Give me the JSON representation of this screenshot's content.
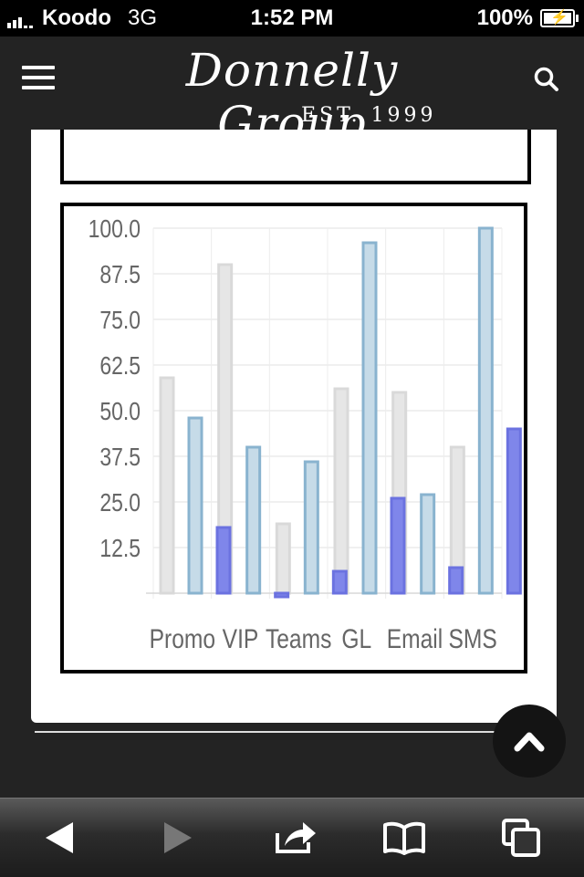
{
  "status_bar": {
    "carrier": "Koodo",
    "network": "3G",
    "time": "1:52 PM",
    "battery": "100%"
  },
  "header": {
    "logo_script": "Donnelly Group",
    "logo_est": "EST. 1999",
    "menu_icon": "hamburger-menu-icon",
    "search_icon": "search-icon"
  },
  "chart_data": {
    "type": "bar",
    "categories": [
      "Promo",
      "VIP",
      "Teams",
      "GL",
      "Email",
      "SMS"
    ],
    "series": [
      {
        "color": "#e6e6e6",
        "values": [
          59,
          90,
          19,
          56,
          55,
          40
        ]
      },
      {
        "color": "#c6dbe8",
        "values": [
          48,
          40,
          36,
          96,
          27,
          100
        ]
      },
      {
        "color": "#7f86ea",
        "values": [
          18,
          -1,
          6,
          26,
          7,
          45
        ]
      }
    ],
    "y_ticks": [
      "12.5",
      "25.0",
      "37.5",
      "50.0",
      "62.5",
      "75.0",
      "87.5",
      "100.0"
    ],
    "ylim": [
      0,
      100
    ],
    "grid": true
  },
  "toolbar": {
    "back_icon": "back-arrow-icon",
    "forward_icon": "forward-arrow-icon",
    "share_icon": "share-icon",
    "bookmarks_icon": "bookmarks-icon",
    "tabs_icon": "tabs-icon"
  },
  "scroll_top_icon": "chevron-up-icon"
}
